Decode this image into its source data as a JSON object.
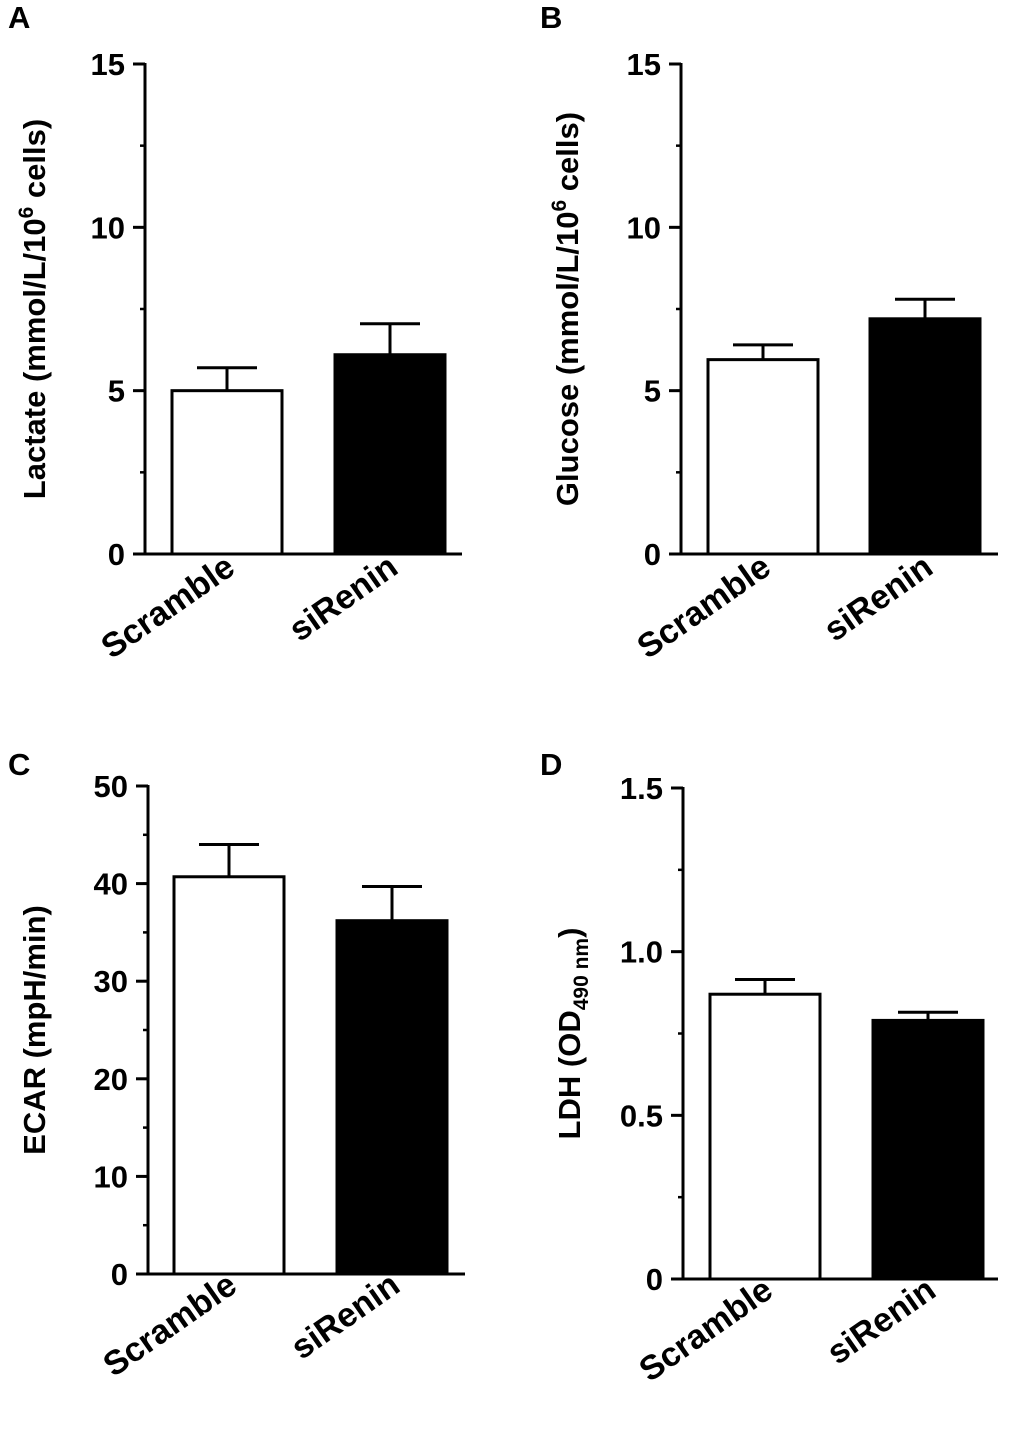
{
  "chart_data": [
    {
      "type": "bar",
      "panel": "A",
      "categories": [
        "Scramble",
        "siRenin"
      ],
      "values": [
        5.0,
        6.1
      ],
      "errors": [
        0.7,
        0.95
      ],
      "bar_colors": [
        "#ffffff",
        "#000000"
      ],
      "ylabel": "Lactate (mmol/L/10",
      "ylabel_sup": "6",
      "ylabel_tail": " cells)",
      "ylim": [
        0,
        15
      ],
      "yticks": [
        0,
        5,
        10,
        15
      ],
      "ytick_labels": [
        "0",
        "5",
        "10",
        "15"
      ],
      "minor_step": 2.5
    },
    {
      "type": "bar",
      "panel": "B",
      "categories": [
        "Scramble",
        "siRenin"
      ],
      "values": [
        5.95,
        7.2
      ],
      "errors": [
        0.45,
        0.6
      ],
      "bar_colors": [
        "#ffffff",
        "#000000"
      ],
      "ylabel": "Glucose (mmol/L/10",
      "ylabel_sup": "6",
      "ylabel_tail": " cells)",
      "ylim": [
        0,
        15
      ],
      "yticks": [
        0,
        5,
        10,
        15
      ],
      "ytick_labels": [
        "0",
        "5",
        "10",
        "15"
      ],
      "minor_step": 2.5
    },
    {
      "type": "bar",
      "panel": "C",
      "categories": [
        "Scramble",
        "siRenin"
      ],
      "values": [
        40.7,
        36.2
      ],
      "errors": [
        3.3,
        3.5
      ],
      "bar_colors": [
        "#ffffff",
        "#000000"
      ],
      "ylabel": "ECAR (mpH/min)",
      "ylim": [
        0,
        50
      ],
      "yticks": [
        0,
        10,
        20,
        30,
        40,
        50
      ],
      "ytick_labels": [
        "0",
        "10",
        "20",
        "30",
        "40",
        "50"
      ],
      "minor_step": 5
    },
    {
      "type": "bar",
      "panel": "D",
      "categories": [
        "Scramble",
        "siRenin"
      ],
      "values": [
        0.87,
        0.79
      ],
      "errors": [
        0.045,
        0.025
      ],
      "bar_colors": [
        "#ffffff",
        "#000000"
      ],
      "ylabel": "LDH (OD",
      "ylabel_sub": "490 nm",
      "ylabel_tail": ")",
      "ylim": [
        0,
        1.5
      ],
      "yticks": [
        0,
        0.5,
        1.0,
        1.5
      ],
      "ytick_labels": [
        "0",
        "0.5",
        "1.0",
        "1.5"
      ],
      "minor_step": 0.25
    }
  ]
}
